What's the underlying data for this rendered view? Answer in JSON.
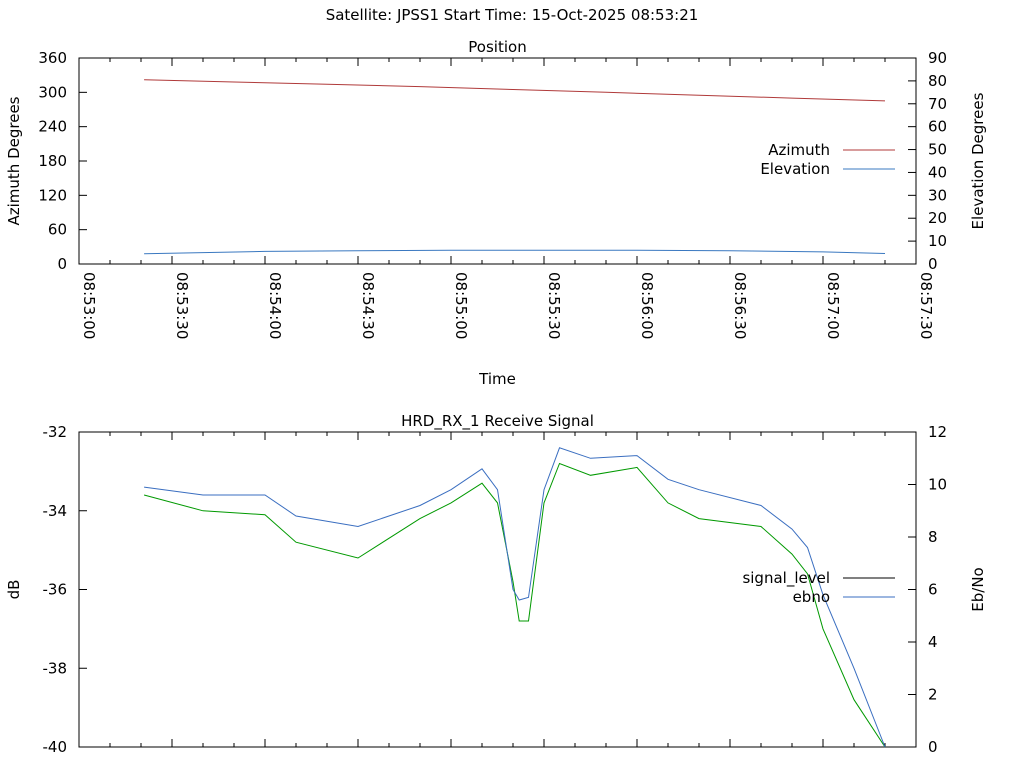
{
  "header": {
    "title": "Satellite: JPSS1    Start Time: 15-Oct-2025 08:53:21"
  },
  "colors": {
    "azimuth": "#b03a3a",
    "elevation": "#3a78c0",
    "signal_level": "#009900",
    "ebno": "#3a6ec0",
    "axes": "#000000"
  },
  "chart_data": [
    {
      "type": "line",
      "title": "Position",
      "xlabel": "Time",
      "ylabel": "Azimuth Degrees",
      "y2label": "Elevation Degrees",
      "xlim": [
        "08:53:00",
        "08:57:30"
      ],
      "ylim": [
        0,
        360
      ],
      "y2lim": [
        0,
        90
      ],
      "x_ticks": [
        "08:53:00",
        "08:53:30",
        "08:54:00",
        "08:54:30",
        "08:55:00",
        "08:55:30",
        "08:56:00",
        "08:56:30",
        "08:57:00",
        "08:57:30"
      ],
      "y_ticks": [
        "0",
        "60",
        "120",
        "180",
        "240",
        "300",
        "360"
      ],
      "y2_ticks": [
        "0",
        "10",
        "20",
        "30",
        "40",
        "50",
        "60",
        "70",
        "80",
        "90"
      ],
      "legend_position": "center-right",
      "series": [
        {
          "name": "Azimuth",
          "axis": "y",
          "x": [
            "08:53:21",
            "08:53:50",
            "08:54:20",
            "08:54:50",
            "08:55:20",
            "08:55:50",
            "08:56:20",
            "08:56:50",
            "08:57:20"
          ],
          "values": [
            322,
            318,
            314,
            310,
            305,
            300,
            295,
            290,
            285
          ]
        },
        {
          "name": "Elevation",
          "axis": "y2",
          "x": [
            "08:53:21",
            "08:53:40",
            "08:54:00",
            "08:54:30",
            "08:55:00",
            "08:55:30",
            "08:56:00",
            "08:56:30",
            "08:57:00",
            "08:57:20"
          ],
          "values": [
            4.5,
            5,
            5.5,
            5.8,
            6,
            6,
            6,
            5.8,
            5.3,
            4.6
          ]
        }
      ]
    },
    {
      "type": "line",
      "title": "HRD_RX_1 Receive Signal",
      "ylabel": "dB",
      "y2label": "Eb/No",
      "xlim": [
        "08:53:00",
        "08:57:30"
      ],
      "ylim": [
        -40,
        -32
      ],
      "y2lim": [
        0,
        12
      ],
      "y_ticks": [
        "-40",
        "-38",
        "-36",
        "-34",
        "-32"
      ],
      "y2_ticks": [
        "0",
        "2",
        "4",
        "6",
        "8",
        "10",
        "12"
      ],
      "legend_position": "right",
      "series": [
        {
          "name": "signal_level",
          "axis": "y",
          "x": [
            "08:53:21",
            "08:53:40",
            "08:54:00",
            "08:54:10",
            "08:54:30",
            "08:54:50",
            "08:55:00",
            "08:55:10",
            "08:55:15",
            "08:55:20",
            "08:55:22",
            "08:55:25",
            "08:55:30",
            "08:55:35",
            "08:55:45",
            "08:56:00",
            "08:56:10",
            "08:56:20",
            "08:56:40",
            "08:56:50",
            "08:56:55",
            "08:57:00",
            "08:57:10",
            "08:57:20"
          ],
          "values": [
            -33.6,
            -34.0,
            -34.1,
            -34.8,
            -35.2,
            -34.2,
            -33.8,
            -33.3,
            -33.8,
            -35.8,
            -36.8,
            -36.8,
            -33.8,
            -32.8,
            -33.1,
            -32.9,
            -33.8,
            -34.2,
            -34.4,
            -35.1,
            -35.6,
            -37.0,
            -38.8,
            -40.0
          ]
        },
        {
          "name": "ebno",
          "axis": "y2",
          "x": [
            "08:53:21",
            "08:53:40",
            "08:54:00",
            "08:54:10",
            "08:54:30",
            "08:54:50",
            "08:55:00",
            "08:55:10",
            "08:55:15",
            "08:55:20",
            "08:55:22",
            "08:55:25",
            "08:55:30",
            "08:55:35",
            "08:55:45",
            "08:56:00",
            "08:56:10",
            "08:56:20",
            "08:56:40",
            "08:56:50",
            "08:56:55",
            "08:57:00",
            "08:57:10",
            "08:57:20"
          ],
          "values": [
            9.9,
            9.6,
            9.6,
            8.8,
            8.4,
            9.2,
            9.8,
            10.6,
            9.8,
            6.0,
            5.6,
            5.7,
            9.8,
            11.4,
            11.0,
            11.1,
            10.2,
            9.8,
            9.2,
            8.3,
            7.6,
            5.8,
            3.0,
            0.0
          ]
        }
      ]
    }
  ]
}
